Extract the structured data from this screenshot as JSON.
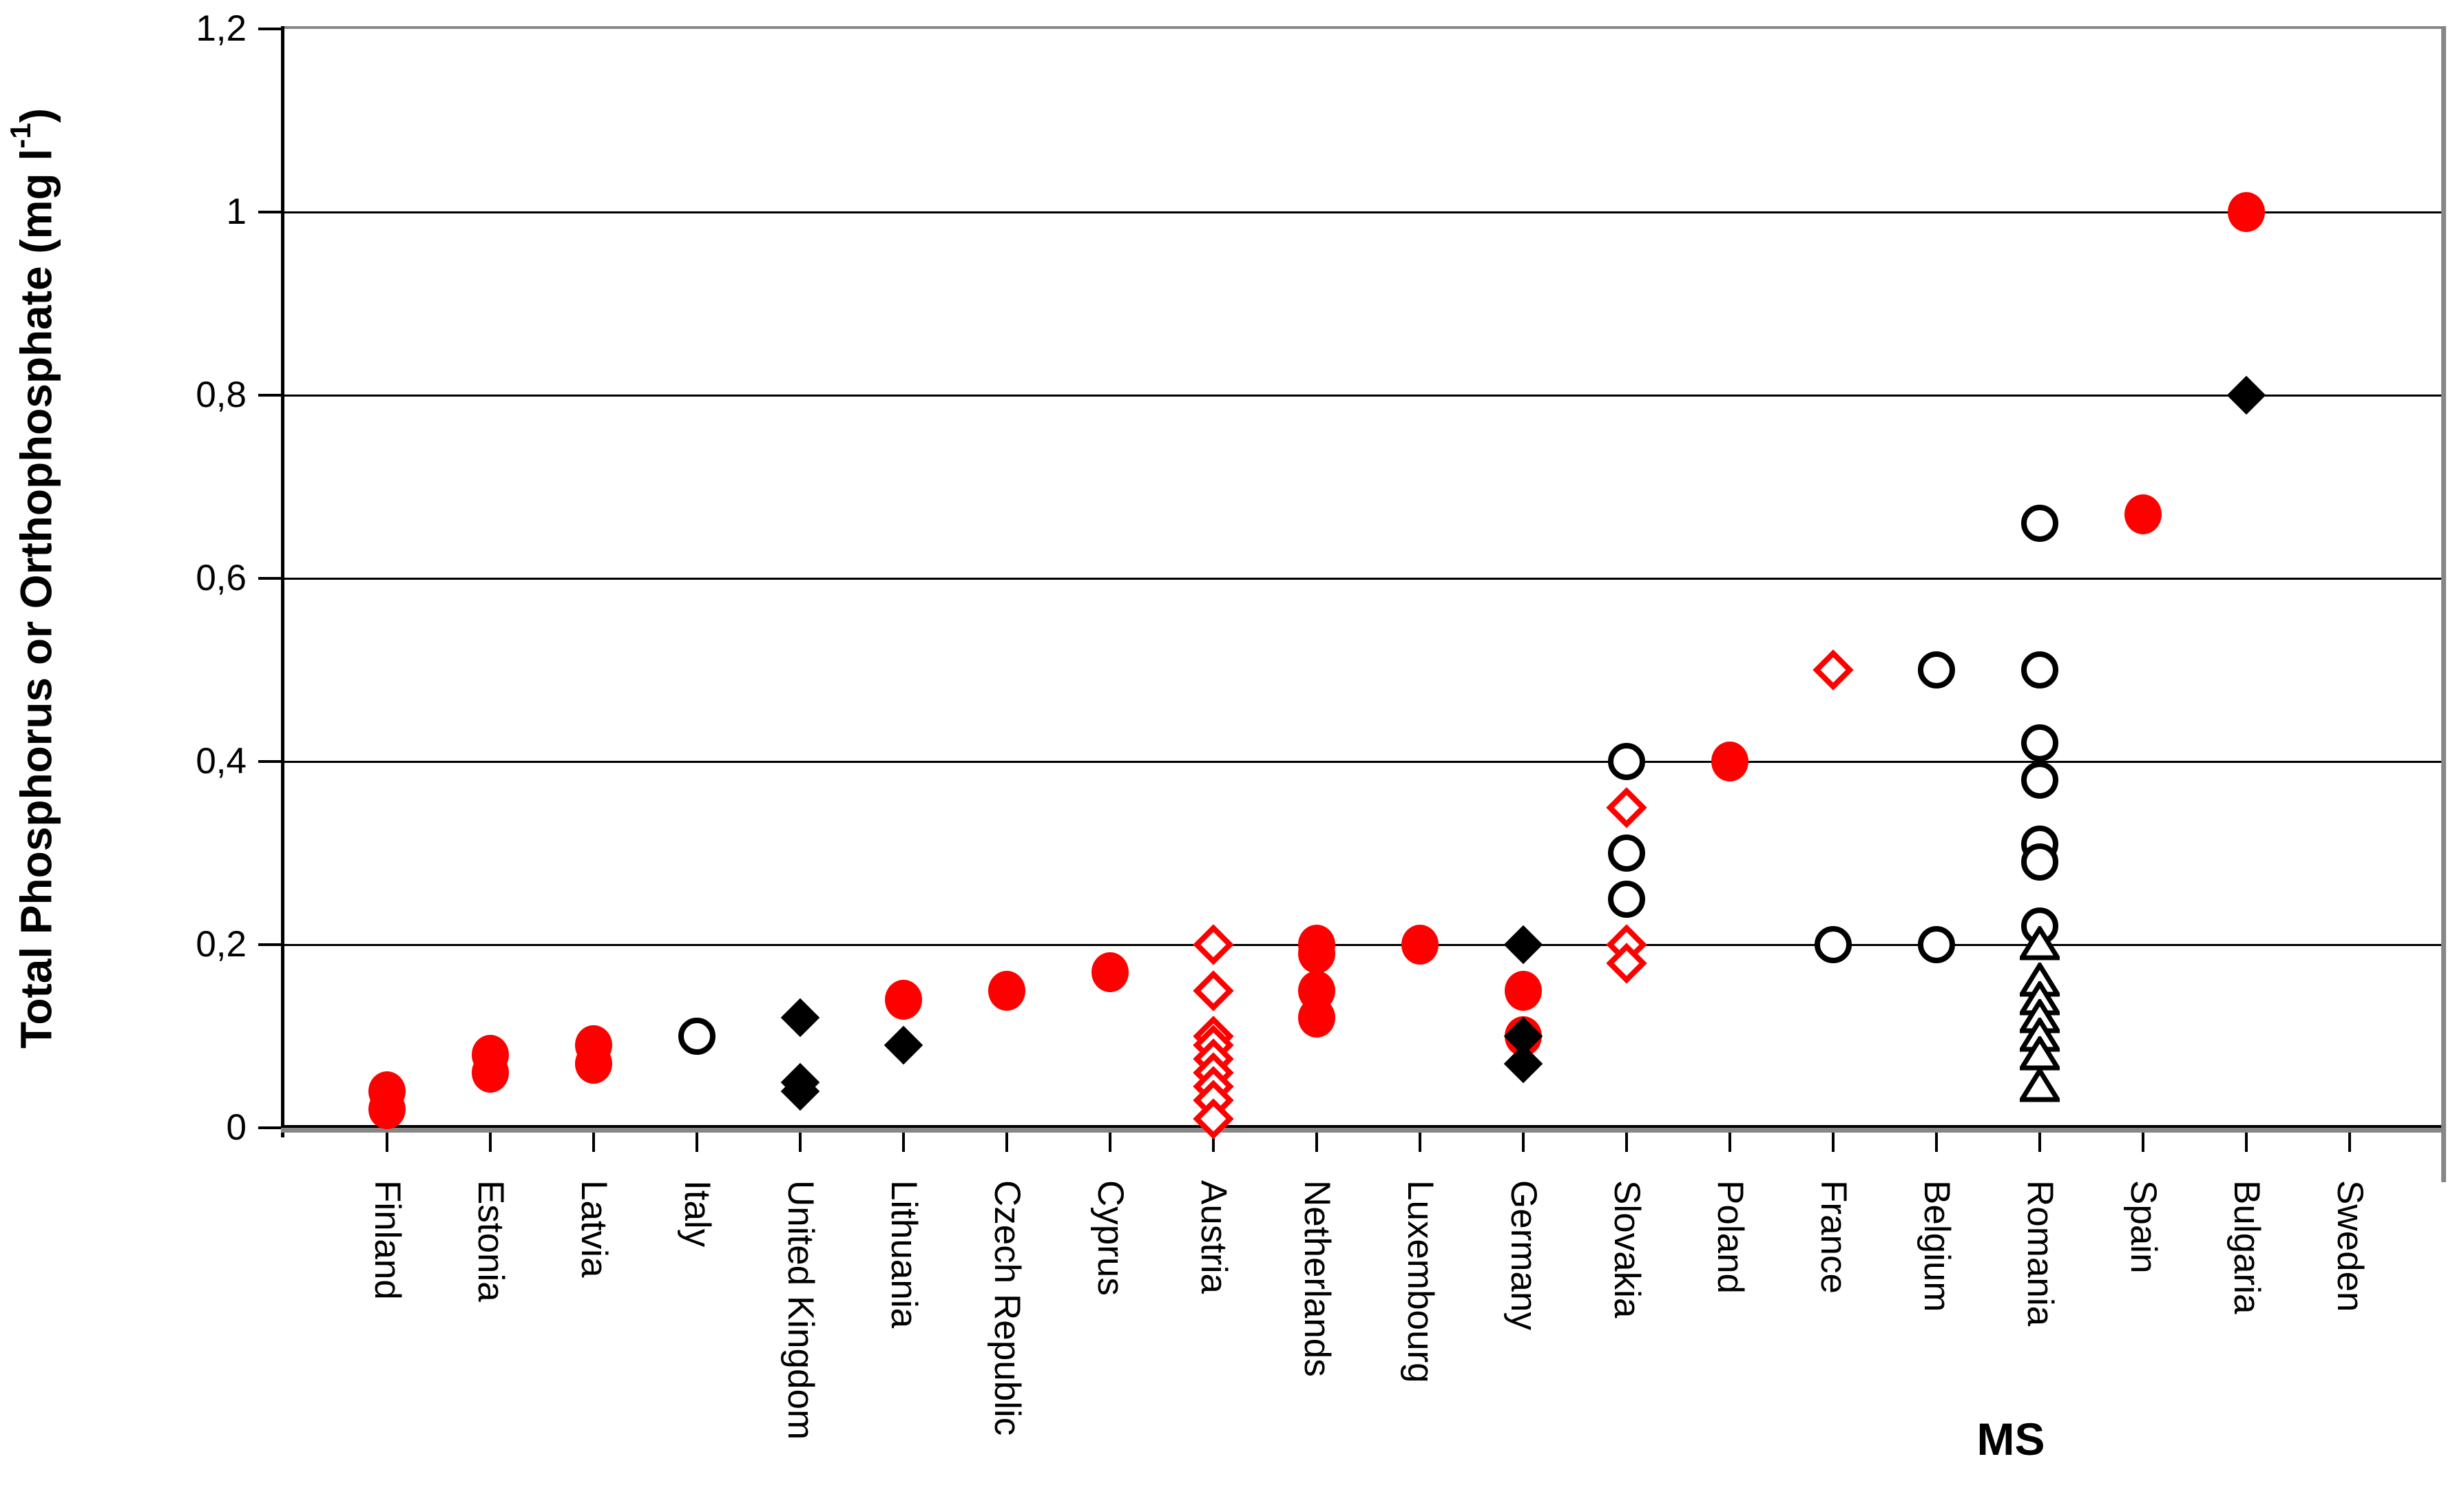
{
  "chart_data": {
    "type": "scatter",
    "title": "",
    "xlabel": "MS",
    "ylabel": "Total Phosphorus or Orthophosphate (mg l-1)",
    "ylabel_parts": {
      "prefix": "Total Phosphorus or Orthophosphate (mg l",
      "superscript": "-1",
      "suffix": ")"
    },
    "ylim": [
      0,
      1.2
    ],
    "grid": "horizontal",
    "legend": "none",
    "y_tick_values": [
      1.2,
      1,
      0.8,
      0.6,
      0.4,
      0.2,
      0
    ],
    "y_tick_labels": [
      "1,2",
      "1",
      "0,8",
      "0,6",
      "0,4",
      "0,2",
      "0"
    ],
    "categories": [
      "Finland",
      "Estonia",
      "Latvia",
      "Italy",
      "United Kingdom",
      "Lithuania",
      "Czech Republic",
      "Cyprus",
      "Austria",
      "Netherlands",
      "Luxembourg",
      "Germany",
      "Slovakia",
      "Poland",
      "France",
      "Belgium",
      "Romania",
      "Spain",
      "Bulgaria",
      "Sweden"
    ],
    "colors": {
      "red": "#FF0000",
      "black": "#000000",
      "axis_gray": "#878787"
    },
    "series": [
      {
        "name": "red filled circle",
        "marker": "red-filled-circle",
        "color": "#FF0000",
        "points": [
          [
            "Finland",
            0.04
          ],
          [
            "Finland",
            0.02
          ],
          [
            "Estonia",
            0.08
          ],
          [
            "Estonia",
            0.06
          ],
          [
            "Latvia",
            0.09
          ],
          [
            "Latvia",
            0.07
          ],
          [
            "Lithuania",
            0.14
          ],
          [
            "Czech Republic",
            0.15
          ],
          [
            "Cyprus",
            0.17
          ],
          [
            "Netherlands",
            0.2
          ],
          [
            "Netherlands",
            0.19
          ],
          [
            "Netherlands",
            0.15
          ],
          [
            "Netherlands",
            0.12
          ],
          [
            "Luxembourg",
            0.2
          ],
          [
            "Germany",
            0.15
          ],
          [
            "Germany",
            0.1
          ],
          [
            "Poland",
            0.4
          ],
          [
            "Spain",
            0.67
          ],
          [
            "Bulgaria",
            1.0
          ]
        ]
      },
      {
        "name": "black filled diamond",
        "marker": "black-filled-diamond",
        "color": "#000000",
        "points": [
          [
            "United Kingdom",
            0.12
          ],
          [
            "United Kingdom",
            0.05
          ],
          [
            "United Kingdom",
            0.04
          ],
          [
            "Lithuania",
            0.09
          ],
          [
            "Germany",
            0.2
          ],
          [
            "Germany",
            0.1
          ],
          [
            "Germany",
            0.07
          ],
          [
            "Bulgaria",
            0.8
          ]
        ]
      },
      {
        "name": "black open circle",
        "marker": "black-open-circle",
        "color": "#000000",
        "points": [
          [
            "Italy",
            0.1
          ],
          [
            "Slovakia",
            0.4
          ],
          [
            "Slovakia",
            0.3
          ],
          [
            "Slovakia",
            0.25
          ],
          [
            "France",
            0.2
          ],
          [
            "Belgium",
            0.5
          ],
          [
            "Belgium",
            0.2
          ],
          [
            "Romania",
            0.66
          ],
          [
            "Romania",
            0.5
          ],
          [
            "Romania",
            0.42
          ],
          [
            "Romania",
            0.38
          ],
          [
            "Romania",
            0.31
          ],
          [
            "Romania",
            0.29
          ],
          [
            "Romania",
            0.22
          ]
        ]
      },
      {
        "name": "red open diamond",
        "marker": "red-open-diamond",
        "color": "#FF0000",
        "points": [
          [
            "Austria",
            0.2
          ],
          [
            "Austria",
            0.15
          ],
          [
            "Austria",
            0.1
          ],
          [
            "Austria",
            0.09
          ],
          [
            "Austria",
            0.075
          ],
          [
            "Austria",
            0.06
          ],
          [
            "Austria",
            0.045
          ],
          [
            "Austria",
            0.03
          ],
          [
            "Austria",
            0.01
          ],
          [
            "Slovakia",
            0.35
          ],
          [
            "Slovakia",
            0.2
          ],
          [
            "Slovakia",
            0.18
          ],
          [
            "France",
            0.5
          ]
        ]
      },
      {
        "name": "black open triangle",
        "marker": "black-open-triangle",
        "color": "#000000",
        "points": [
          [
            "Romania",
            0.2
          ],
          [
            "Romania",
            0.16
          ],
          [
            "Romania",
            0.14
          ],
          [
            "Romania",
            0.12
          ],
          [
            "Romania",
            0.1
          ],
          [
            "Romania",
            0.08
          ],
          [
            "Romania",
            0.045
          ]
        ]
      }
    ]
  }
}
